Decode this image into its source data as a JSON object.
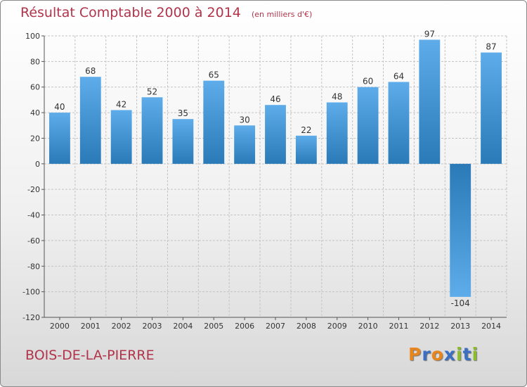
{
  "header": {
    "title": "Résultat Comptable 2000 à 2014",
    "subtitle": "(en milliers d'€)"
  },
  "commune": "BOIS-DE-LA-PIERRE",
  "logo": {
    "text": "Proxiti",
    "letters": [
      "P",
      "r",
      "o",
      "x",
      "i",
      "t",
      "i"
    ],
    "colors": [
      "#e8851c",
      "#3a6fc4",
      "#e8851c",
      "#3a6fc4",
      "#8dbb2e",
      "#3a6fc4",
      "#8dbb2e"
    ]
  },
  "chart_data": {
    "type": "bar",
    "title": "Résultat Comptable 2000 à 2014",
    "subtitle": "(en milliers d'€)",
    "xlabel": "",
    "ylabel": "",
    "categories": [
      "2000",
      "2001",
      "2002",
      "2003",
      "2004",
      "2005",
      "2006",
      "2007",
      "2008",
      "2009",
      "2010",
      "2011",
      "2012",
      "2013",
      "2014"
    ],
    "values": [
      40,
      68,
      42,
      52,
      35,
      65,
      30,
      46,
      22,
      48,
      60,
      64,
      97,
      -104,
      87
    ],
    "value_labels": [
      "40",
      "68",
      "42",
      "52",
      "35",
      "65",
      "30",
      "46",
      "22",
      "48",
      "60",
      "64",
      "97",
      "-104",
      "87"
    ],
    "ylim": [
      -120,
      100
    ],
    "yticks": [
      100,
      80,
      60,
      40,
      20,
      0,
      -20,
      -40,
      -60,
      -80,
      -100,
      -120
    ],
    "ytick_labels": [
      "100",
      "80",
      "60",
      "40",
      "20",
      "0",
      "-20",
      "-40",
      "-60",
      "-80",
      "-100",
      "-120"
    ],
    "grid": true,
    "bar_color_light": "#5eacea",
    "bar_color_dark": "#2a7ab8"
  }
}
